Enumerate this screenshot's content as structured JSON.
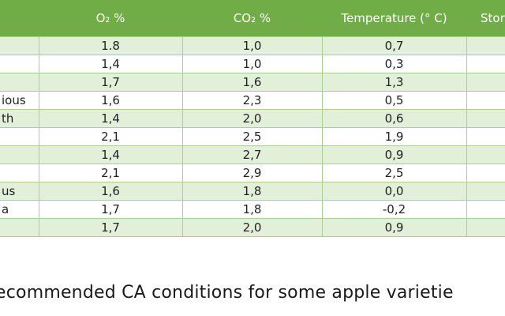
{
  "table": {
    "headers": [
      "",
      "O₂ %",
      "CO₂ %",
      "Temperature (° C)",
      "Stor"
    ],
    "rows": [
      {
        "variety": "",
        "o2": "1.8",
        "co2": "1,0",
        "temp": "0,7"
      },
      {
        "variety": "",
        "o2": "1,4",
        "co2": "1,0",
        "temp": "0,3"
      },
      {
        "variety": "",
        "o2": "1,7",
        "co2": "1,6",
        "temp": "1,3"
      },
      {
        "variety": "ious",
        "o2": "1,6",
        "co2": "2,3",
        "temp": "0,5"
      },
      {
        "variety": "th",
        "o2": "1,4",
        "co2": "2,0",
        "temp": "0,6"
      },
      {
        "variety": "",
        "o2": "2,1",
        "co2": "2,5",
        "temp": "1,9"
      },
      {
        "variety": "",
        "o2": "1,4",
        "co2": "2,7",
        "temp": "0,9"
      },
      {
        "variety": "",
        "o2": "2,1",
        "co2": "2,9",
        "temp": "2,5"
      },
      {
        "variety": "us",
        "o2": "1,6",
        "co2": "1,8",
        "temp": "0,0"
      },
      {
        "variety": "a",
        "o2": "1,7",
        "co2": "1,8",
        "temp": "-0,2"
      },
      {
        "variety": "",
        "o2": "1,7",
        "co2": "2,0",
        "temp": "0,9"
      }
    ]
  },
  "caption": "ecommended CA conditions for some apple varietie",
  "colors": {
    "header_bg": "#70ad47",
    "band_bg": "#e2efd9",
    "grid": "#a9d18e",
    "header_text": "#ffffff"
  }
}
